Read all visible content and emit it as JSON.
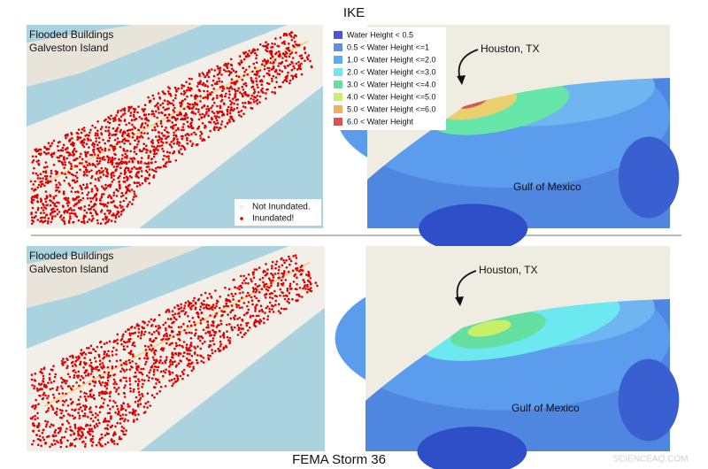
{
  "top": {
    "title": "IKE",
    "buildings_map": {
      "caption": [
        "Flooded Buildings",
        "Galveston Island"
      ],
      "legend": [
        "Not Inundated.",
        "Inundated!"
      ]
    },
    "surge_map": {
      "city": "Houston, TX",
      "sea": "Gulf of Mexico",
      "legend": [
        "Water Height < 0.5",
        "0.5 < Water Height <=1",
        "1.0 < Water Height <=2.0",
        "2.0 < Water Height <=3.0",
        "3.0 < Water Height <=4.0",
        "4.0 < Water Height <=5.0",
        "5.0 < Water Height <=6.0",
        "6.0 < Water Height"
      ]
    }
  },
  "bottom": {
    "title": "FEMA Storm 36",
    "buildings_map": {
      "caption": [
        "Flooded Buildings",
        "Galveston Island"
      ]
    },
    "surge_map": {
      "city": "Houston, TX",
      "sea": "Gulf of Mexico"
    }
  },
  "watermark": "SCIENCEAQ.COM"
}
